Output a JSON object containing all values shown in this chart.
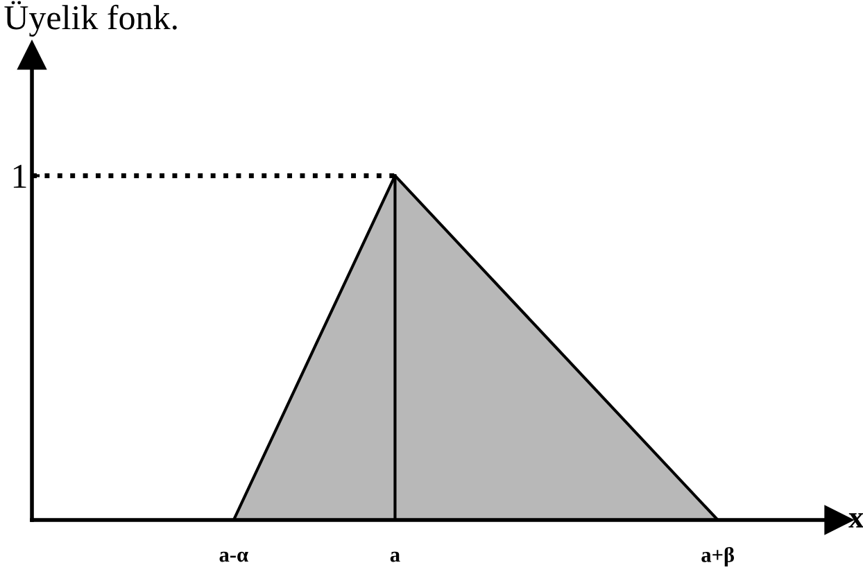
{
  "chart_data": {
    "type": "area",
    "xlabel": "x",
    "ylabel": "Üyelik fonk.",
    "categories": [
      null,
      null,
      "a-α",
      null,
      "a",
      null,
      null,
      null,
      "a+β",
      null
    ],
    "series": [
      {
        "color": "#b8b8b8",
        "values": [
          null,
          null,
          0,
          0.5,
          1,
          0.75,
          0.5,
          0.25,
          0,
          null
        ]
      }
    ],
    "ylim": [
      0,
      1.35
    ],
    "yticks": [
      {
        "value": 0,
        "label": null
      },
      1
    ],
    "ref_lines": [
      {
        "axis": "y",
        "value": 1,
        "line_style": "dotted",
        "color": "#000000"
      },
      {
        "axis": "x",
        "value": "a",
        "line_style": "solid",
        "color": "#000000"
      }
    ],
    "grid": false,
    "legend": false
  }
}
